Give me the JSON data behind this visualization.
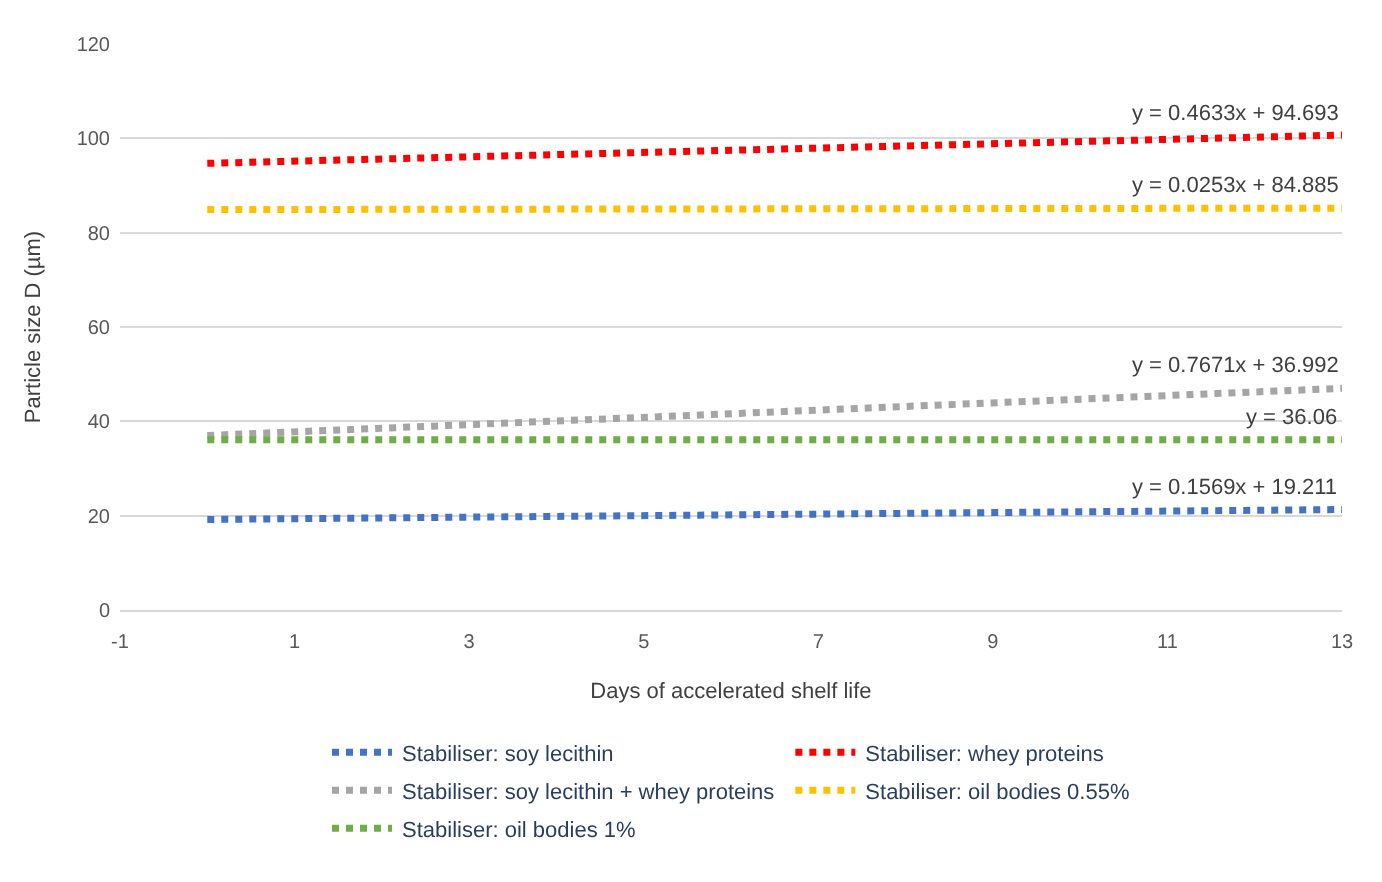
{
  "chart_data": {
    "type": "line",
    "xlabel": "Days of accelerated shelf life",
    "ylabel": "Particle size D (µm)",
    "x": [
      0,
      13
    ],
    "series": [
      {
        "name": "Stabiliser: soy lecithin",
        "color": "#4472c4",
        "values": [
          19.2,
          21.3
        ]
      },
      {
        "name": "Stabiliser: whey proteins",
        "color": "#ff0000",
        "values": [
          94.7,
          100.7
        ]
      },
      {
        "name": "Stabiliser: soy lecithin + whey proteins",
        "color": "#a5a5a5",
        "values": [
          37.0,
          47.0
        ]
      },
      {
        "name": "Stabiliser: oil bodies 0.55%",
        "color": "#ffc000",
        "values": [
          84.9,
          85.2
        ]
      },
      {
        "name": "Stabiliser: oil bodies 1%",
        "color": "#70ad47",
        "values": [
          36.1,
          36.1
        ]
      }
    ],
    "annotations": [
      "y = 0.1569x + 19.211",
      "y = 0.4633x + 94.693",
      "y = 0.7671x + 36.992",
      "y = 0.0253x + 84.885",
      "y = 36.06"
    ],
    "xlim": [
      -1,
      13
    ],
    "xticks": [
      -1,
      1,
      3,
      5,
      7,
      9,
      11,
      13
    ],
    "ylim": [
      0,
      120
    ],
    "yticks": [
      0,
      20,
      40,
      60,
      80,
      100,
      120
    ],
    "grid": "y",
    "legend": "bottom",
    "marker": "none",
    "line_style": "dotted"
  }
}
